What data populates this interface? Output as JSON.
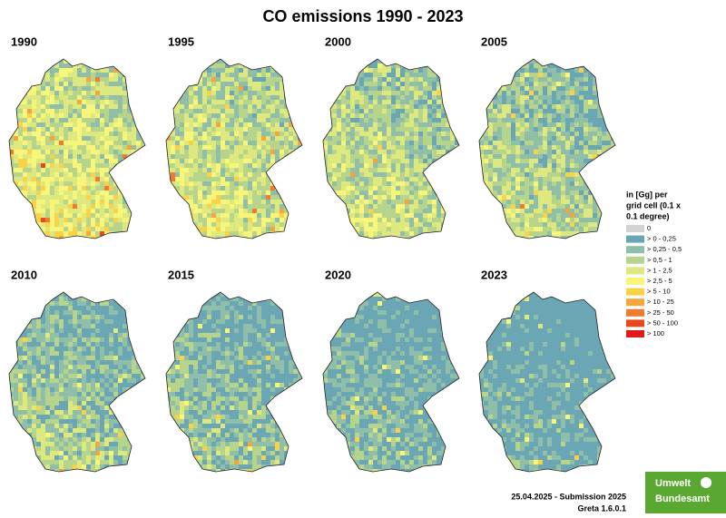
{
  "title": "CO emissions 1990 - 2023",
  "panels": [
    "1990",
    "1995",
    "2000",
    "2005",
    "2010",
    "2015",
    "2020",
    "2023"
  ],
  "legend": {
    "title": [
      "in [Gg] per",
      "grid cell (0.1 x",
      "0.1 degree)"
    ],
    "items": [
      {
        "label": "0",
        "color": "#d3d3d3"
      },
      {
        "label": "> 0     - 0,25",
        "color": "#6aa6b3"
      },
      {
        "label": "> 0,25 - 0,5",
        "color": "#8fbfa8"
      },
      {
        "label": "> 0,5   - 1",
        "color": "#b7d48c"
      },
      {
        "label": "> 1     - 2,5",
        "color": "#dde87e"
      },
      {
        "label": "> 2,5   - 5",
        "color": "#f7f57a"
      },
      {
        "label": "> 5     - 10",
        "color": "#f9d24a"
      },
      {
        "label": "> 10   - 25",
        "color": "#f6a53a"
      },
      {
        "label": "> 25   - 50",
        "color": "#f07a2e"
      },
      {
        "label": "> 50   - 100",
        "color": "#e9481f"
      },
      {
        "label": "> 100",
        "color": "#e01a1a"
      }
    ]
  },
  "footer": [
    "25.04.2025 - Submission 2025",
    "Greta 1.6.0.1"
  ],
  "logo": [
    "Umwelt",
    "Bundesamt"
  ]
}
